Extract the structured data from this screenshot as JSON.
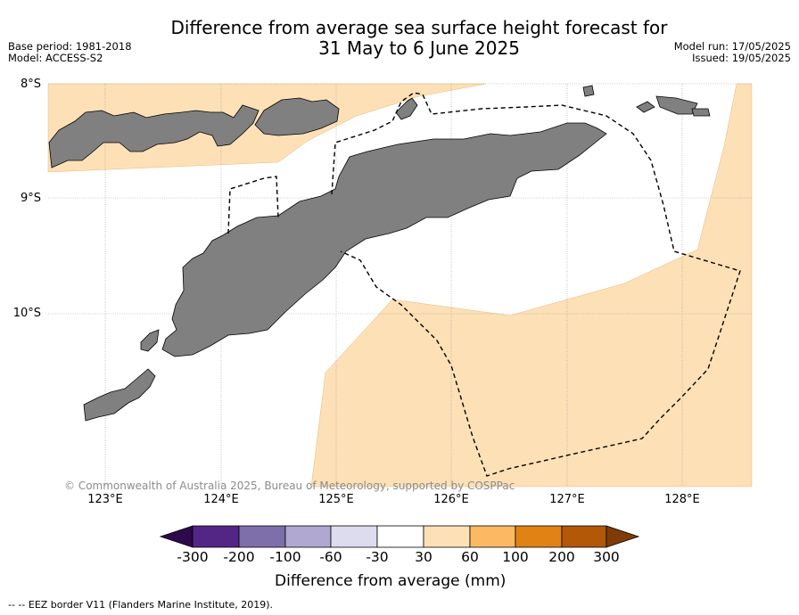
{
  "title_line1": "Difference from average sea surface height forecast for",
  "title_line2": "31 May to 6 June 2025",
  "base_period": "Base period: 1981-2018",
  "model": "Model: ACCESS-S2",
  "model_run": "Model run: 17/05/2025",
  "issued": "Issued: 19/05/2025",
  "lat_labels": [
    "8°S",
    "9°S",
    "10°S"
  ],
  "lon_labels": [
    "123°E",
    "124°E",
    "125°E",
    "126°E",
    "127°E",
    "128°E"
  ],
  "copyright": "© Commonwealth of Australia 2025, Bureau of Meteorology, supported by COSPPac",
  "colorbar": {
    "title": "Difference from average (mm)",
    "tick_labels": [
      "-300",
      "-200",
      "-100",
      "-60",
      "-30",
      "30",
      "60",
      "100",
      "200",
      "300"
    ],
    "colors": [
      "#2d0a4b",
      "#532686",
      "#7e6eaa",
      "#b0a8d1",
      "#dcdcee",
      "#ffffff",
      "#fde0b6",
      "#fdb863",
      "#e08214",
      "#b35806",
      "#7f3b08"
    ]
  },
  "legend_note": "-- -- EEZ border V11 (Flanders Marine Institute, 2019).",
  "map_colors": {
    "land": "#808080",
    "positive_30_60": "#fde0b6",
    "background": "#ffffff"
  }
}
